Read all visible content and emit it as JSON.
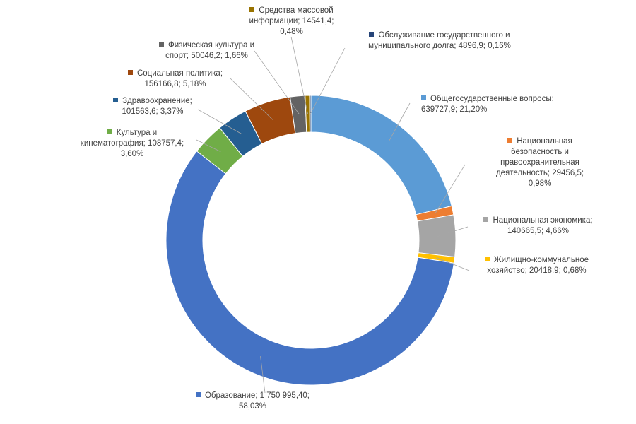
{
  "chart_data": {
    "type": "pie",
    "donut": true,
    "slices": [
      {
        "name": "Общегосударственные вопросы",
        "value_text": "639727,9",
        "pct_text": "21,20%",
        "value": 639727.9,
        "pct": 21.2,
        "color": "#5b9bd5"
      },
      {
        "name": "Национальная безопасность и правоохранительная деятельность",
        "value_text": "29456,5",
        "pct_text": "0,98%",
        "value": 29456.5,
        "pct": 0.98,
        "color": "#ed7d31"
      },
      {
        "name": "Национальная экономика",
        "value_text": "140665,5",
        "pct_text": "4,66%",
        "value": 140665.5,
        "pct": 4.66,
        "color": "#a5a5a5"
      },
      {
        "name": "Жилищно-коммунальное хозяйство",
        "value_text": "20418,9",
        "pct_text": "0,68%",
        "value": 20418.9,
        "pct": 0.68,
        "color": "#ffc000"
      },
      {
        "name": "Образование",
        "value_text": "1 750 995,40",
        "pct_text": "58,03%",
        "value": 1750995.4,
        "pct": 58.03,
        "color": "#4472c4"
      },
      {
        "name": "Культура и кинематография",
        "value_text": "108757,4",
        "pct_text": "3,60%",
        "value": 108757.4,
        "pct": 3.6,
        "color": "#70ad47"
      },
      {
        "name": "Здравоохранение",
        "value_text": "101563,6",
        "pct_text": "3,37%",
        "value": 101563.6,
        "pct": 3.37,
        "color": "#255e91"
      },
      {
        "name": "Социальная политика",
        "value_text": "156166,8",
        "pct_text": "5,18%",
        "value": 156166.8,
        "pct": 5.18,
        "color": "#9e480e"
      },
      {
        "name": "Физическая культура и спорт",
        "value_text": "50046,2",
        "pct_text": "1,66%",
        "value": 50046.2,
        "pct": 1.66,
        "color": "#636363"
      },
      {
        "name": "Средства массовой информации",
        "value_text": "14541,4",
        "pct_text": "0,48%",
        "value": 14541.4,
        "pct": 0.48,
        "color": "#997300"
      },
      {
        "name": "Обслуживание государственного и муниципального долга",
        "value_text": "4896,9",
        "pct_text": "0,16%",
        "value": 4896.9,
        "pct": 0.16,
        "color": "#264478"
      }
    ],
    "labels": [
      {
        "lines": [
          "Общегосударственные вопросы;",
          "639727,9; 21,20%"
        ]
      },
      {
        "lines": [
          "Национальная",
          "безопасность и",
          "правоохранительная",
          "деятельность; 29456,5;",
          "0,98%"
        ]
      },
      {
        "lines": [
          "Национальная экономика;",
          "140665,5; 4,66%"
        ]
      },
      {
        "lines": [
          "Жилищно-коммунальное",
          "хозяйство; 20418,9; 0,68%"
        ]
      },
      {
        "lines": [
          "Образование; 1 750 995,40;",
          "58,03%"
        ]
      },
      {
        "lines": [
          "Культура и",
          "кинематография; 108757,4;",
          "3,60%"
        ]
      },
      {
        "lines": [
          "Здравоохранение;",
          "101563,6; 3,37%"
        ]
      },
      {
        "lines": [
          "Социальная политика;",
          "156166,8; 5,18%"
        ]
      },
      {
        "lines": [
          "Физическая культура и",
          "спорт; 50046,2; 1,66%"
        ]
      },
      {
        "lines": [
          "Средства массовой",
          "информации; 14541,4;",
          "0,48%"
        ]
      },
      {
        "lines": [
          "Обслуживание государственного и",
          "муниципального долга; 4896,9; 0,16%"
        ]
      }
    ]
  }
}
